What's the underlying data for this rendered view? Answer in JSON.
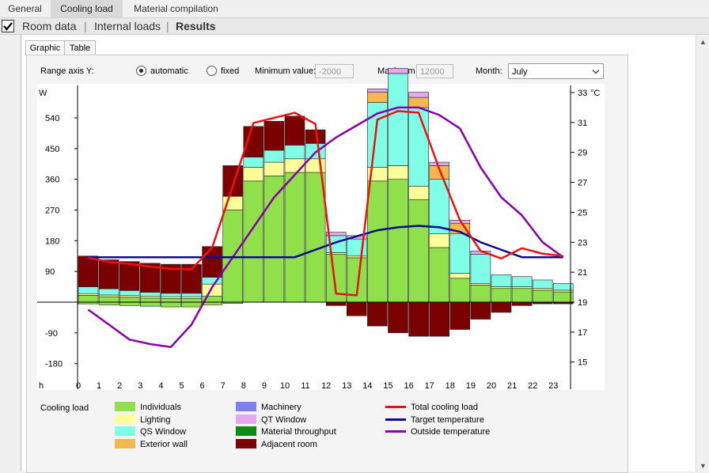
{
  "tabs": [
    "General",
    "Cooling load",
    "Material compilation"
  ],
  "subnav": [
    "Room data",
    "Internal loads",
    "Results"
  ],
  "inner_tabs": [
    "Graphic",
    "Table"
  ],
  "controls": {
    "range_label": "Range axis Y:",
    "automatic": "automatic",
    "fixed": "fixed",
    "min_label": "Minimum value:",
    "min_value": "-2000",
    "max_label": "Maximum",
    "max_value": "12000",
    "month_label": "Month:",
    "month_value": "July"
  },
  "legend": {
    "title": "Cooling load",
    "items": [
      {
        "label": "Individuals",
        "color": "#8fe04a"
      },
      {
        "label": "Lighting",
        "color": "#ffff99"
      },
      {
        "label": "QS Window",
        "color": "#7ffde6"
      },
      {
        "label": "Exterior wall",
        "color": "#f5b84e"
      },
      {
        "label": "Machinery",
        "color": "#7f7ff5"
      },
      {
        "label": "QT Window",
        "color": "#e4a8f0"
      },
      {
        "label": "Material throughput",
        "color": "#0e8a0e"
      },
      {
        "label": "Adjacent room",
        "color": "#7b0000"
      },
      {
        "label": "Total cooling load",
        "color": "#ee1111"
      },
      {
        "label": "Target temperature",
        "color": "#0b0b8c"
      },
      {
        "label": "Outside temperature",
        "color": "#8a00aa"
      }
    ]
  },
  "chart_data": {
    "type": "bar",
    "xlabel": "h",
    "ylabel": "W",
    "y2label": "°C",
    "ylim": [
      -255,
      630
    ],
    "y2lim": [
      13.6,
      33.0
    ],
    "yticks": [
      -180,
      -90,
      90,
      180,
      270,
      360,
      450,
      540
    ],
    "y2ticks": [
      15,
      17,
      19,
      21,
      23,
      25,
      27,
      29,
      31,
      33
    ],
    "categories": [
      "0",
      "1",
      "2",
      "3",
      "4",
      "5",
      "6",
      "7",
      "8",
      "9",
      "10",
      "11",
      "12",
      "13",
      "14",
      "15",
      "16",
      "17",
      "18",
      "19",
      "20",
      "21",
      "22",
      "23"
    ],
    "series": [
      {
        "name": "Individuals",
        "color": "#8fe04a",
        "values": [
          20,
          16,
          14,
          12,
          11,
          11,
          18,
          270,
          355,
          370,
          380,
          380,
          140,
          130,
          355,
          360,
          300,
          160,
          70,
          50,
          40,
          40,
          35,
          30
        ]
      },
      {
        "name": "Lighting",
        "color": "#ffff99",
        "values": [
          5,
          5,
          5,
          5,
          5,
          5,
          35,
          40,
          40,
          40,
          40,
          40,
          5,
          5,
          40,
          40,
          40,
          40,
          15,
          5,
          5,
          5,
          5,
          5
        ]
      },
      {
        "name": "QS Window",
        "color": "#7ffde6",
        "values": [
          20,
          18,
          15,
          12,
          10,
          10,
          20,
          0,
          30,
          35,
          40,
          45,
          50,
          50,
          190,
          270,
          230,
          160,
          115,
          85,
          35,
          30,
          25,
          20
        ]
      },
      {
        "name": "Exterior wall",
        "color": "#f5b84e",
        "values": [
          0,
          0,
          0,
          0,
          0,
          0,
          0,
          0,
          0,
          0,
          0,
          0,
          0,
          0,
          30,
          0,
          30,
          40,
          30,
          0,
          0,
          0,
          0,
          0
        ]
      },
      {
        "name": "Machinery",
        "color": "#7f7ff5",
        "values": [
          0,
          0,
          0,
          0,
          0,
          0,
          0,
          0,
          0,
          0,
          0,
          0,
          0,
          0,
          0,
          0,
          0,
          0,
          0,
          0,
          0,
          0,
          0,
          0
        ]
      },
      {
        "name": "QT Window",
        "color": "#e4a8f0",
        "values": [
          0,
          0,
          0,
          0,
          0,
          0,
          0,
          0,
          0,
          0,
          0,
          0,
          10,
          10,
          10,
          15,
          15,
          10,
          10,
          10,
          0,
          0,
          0,
          0
        ]
      },
      {
        "name": "Material throughput",
        "color": "#0e8a0e",
        "values": [
          0,
          0,
          0,
          0,
          0,
          0,
          0,
          0,
          0,
          0,
          0,
          0,
          0,
          0,
          0,
          0,
          0,
          0,
          0,
          0,
          0,
          0,
          0,
          0
        ]
      },
      {
        "name": "Adjacent room",
        "color": "#7b0000",
        "values": [
          90,
          85,
          85,
          85,
          85,
          85,
          90,
          90,
          90,
          85,
          85,
          40,
          0,
          0,
          0,
          0,
          0,
          0,
          0,
          0,
          0,
          0,
          0,
          0
        ]
      }
    ],
    "negative": {
      "individuals": [
        -5,
        -8,
        -10,
        -12,
        -14,
        -14,
        -8,
        -4,
        0,
        0,
        0,
        0,
        0,
        0,
        0,
        0,
        0,
        0,
        0,
        0,
        0,
        0,
        0,
        0
      ],
      "adjacent": [
        0,
        0,
        0,
        0,
        0,
        0,
        0,
        0,
        0,
        0,
        0,
        0,
        -10,
        -40,
        -70,
        -90,
        -100,
        -100,
        -80,
        -50,
        -30,
        -10,
        -5,
        -5
      ]
    },
    "total_cooling_load": [
      130,
      118,
      112,
      104,
      98,
      96,
      160,
      340,
      525,
      540,
      555,
      522,
      25,
      20,
      535,
      560,
      555,
      390,
      240,
      150,
      128,
      158,
      142,
      135
    ],
    "target_temperature": [
      22,
      22,
      22,
      22,
      22,
      22,
      22,
      22,
      22,
      22,
      22,
      22.5,
      23,
      23.4,
      23.8,
      24,
      24.1,
      24,
      23.7,
      23,
      22.5,
      22,
      22,
      22
    ],
    "outside_temperature": [
      18.5,
      17.5,
      16.5,
      16.2,
      16,
      17.5,
      20,
      22,
      24,
      26,
      27.5,
      29,
      30,
      30.8,
      31.6,
      32,
      32,
      31.5,
      30.6,
      28,
      26,
      24.8,
      23,
      22
    ]
  }
}
